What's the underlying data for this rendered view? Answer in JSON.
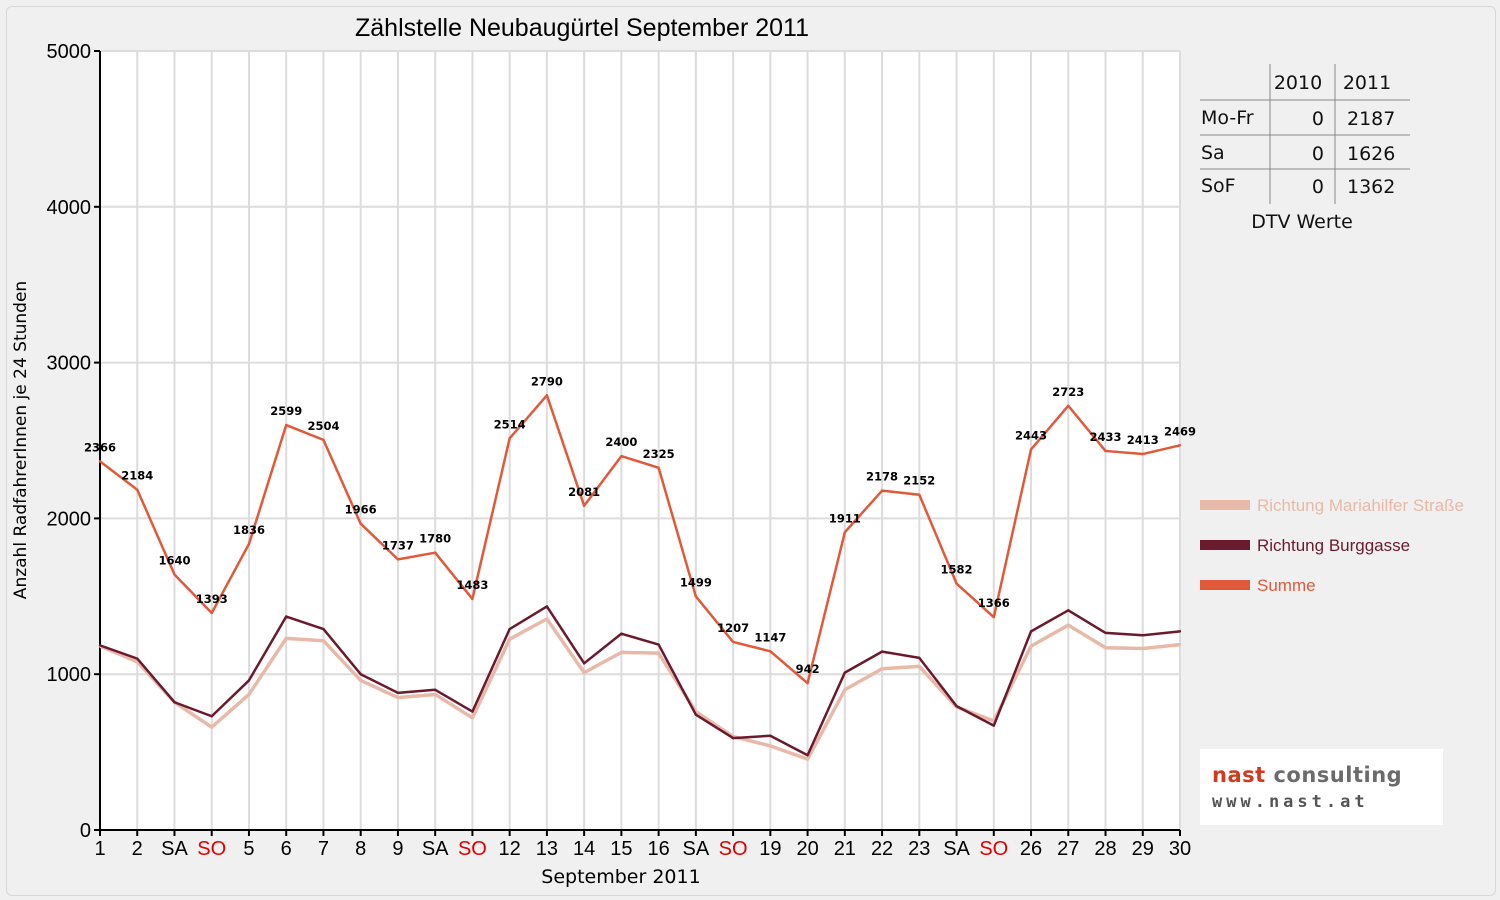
{
  "chart_data": {
    "type": "line",
    "title": "Zählstelle Neubaugürtel September 2011",
    "xlabel": "September 2011",
    "ylabel": "Anzahl RadfahrerInnen je 24 Stunden",
    "ylim": [
      0,
      5000
    ],
    "yticks": [
      "0",
      "1000",
      "2000",
      "3000",
      "4000",
      "5000"
    ],
    "grid": true,
    "legend_position": "right",
    "categories": [
      "1",
      "2",
      "SA",
      "SO",
      "5",
      "6",
      "7",
      "8",
      "9",
      "SA",
      "SO",
      "12",
      "13",
      "14",
      "15",
      "16",
      "SA",
      "SO",
      "19",
      "20",
      "21",
      "22",
      "23",
      "SA",
      "SO",
      "26",
      "27",
      "28",
      "29",
      "30"
    ],
    "category_colors": [
      "#000000",
      "#000000",
      "#000000",
      "#e00000",
      "#000000",
      "#000000",
      "#000000",
      "#000000",
      "#000000",
      "#000000",
      "#e00000",
      "#000000",
      "#000000",
      "#000000",
      "#000000",
      "#000000",
      "#000000",
      "#e00000",
      "#000000",
      "#000000",
      "#000000",
      "#000000",
      "#000000",
      "#000000",
      "#e00000",
      "#000000",
      "#000000",
      "#000000",
      "#000000",
      "#000000"
    ],
    "series": [
      {
        "name": "Richtung Mariahilfer Straße",
        "color": "#e8b9a8",
        "values": [
          1180,
          1080,
          820,
          660,
          870,
          1230,
          1215,
          960,
          850,
          870,
          720,
          1225,
          1355,
          1010,
          1140,
          1135,
          760,
          600,
          540,
          455,
          900,
          1035,
          1050,
          790,
          700,
          1180,
          1315,
          1170,
          1165,
          1190
        ]
      },
      {
        "name": "Richtung Burggasse",
        "color": "#6b1a2e",
        "values": [
          1185,
          1100,
          820,
          730,
          960,
          1370,
          1290,
          1000,
          880,
          900,
          760,
          1290,
          1435,
          1070,
          1260,
          1190,
          740,
          590,
          605,
          480,
          1010,
          1145,
          1105,
          795,
          670,
          1275,
          1410,
          1265,
          1250,
          1275
        ]
      },
      {
        "name": "Summe",
        "color": "#e05a3a",
        "values": [
          2366,
          2184,
          1640,
          1393,
          1836,
          2599,
          2504,
          1966,
          1737,
          1780,
          1483,
          2514,
          2790,
          2081,
          2400,
          2325,
          1499,
          1207,
          1147,
          942,
          1911,
          2178,
          2152,
          1582,
          1366,
          2443,
          2723,
          2433,
          2413,
          2469
        ]
      }
    ]
  },
  "dtv_table": {
    "caption": "DTV Werte",
    "headers": [
      "",
      "2010",
      "2011"
    ],
    "rows": [
      [
        "Mo-Fr",
        "0",
        "2187"
      ],
      [
        "Sa",
        "0",
        "1626"
      ],
      [
        "SoF",
        "0",
        "1362"
      ]
    ]
  },
  "logo": {
    "name_part1": "nast",
    "name_part2": "consulting",
    "url": "www.nast.at"
  }
}
